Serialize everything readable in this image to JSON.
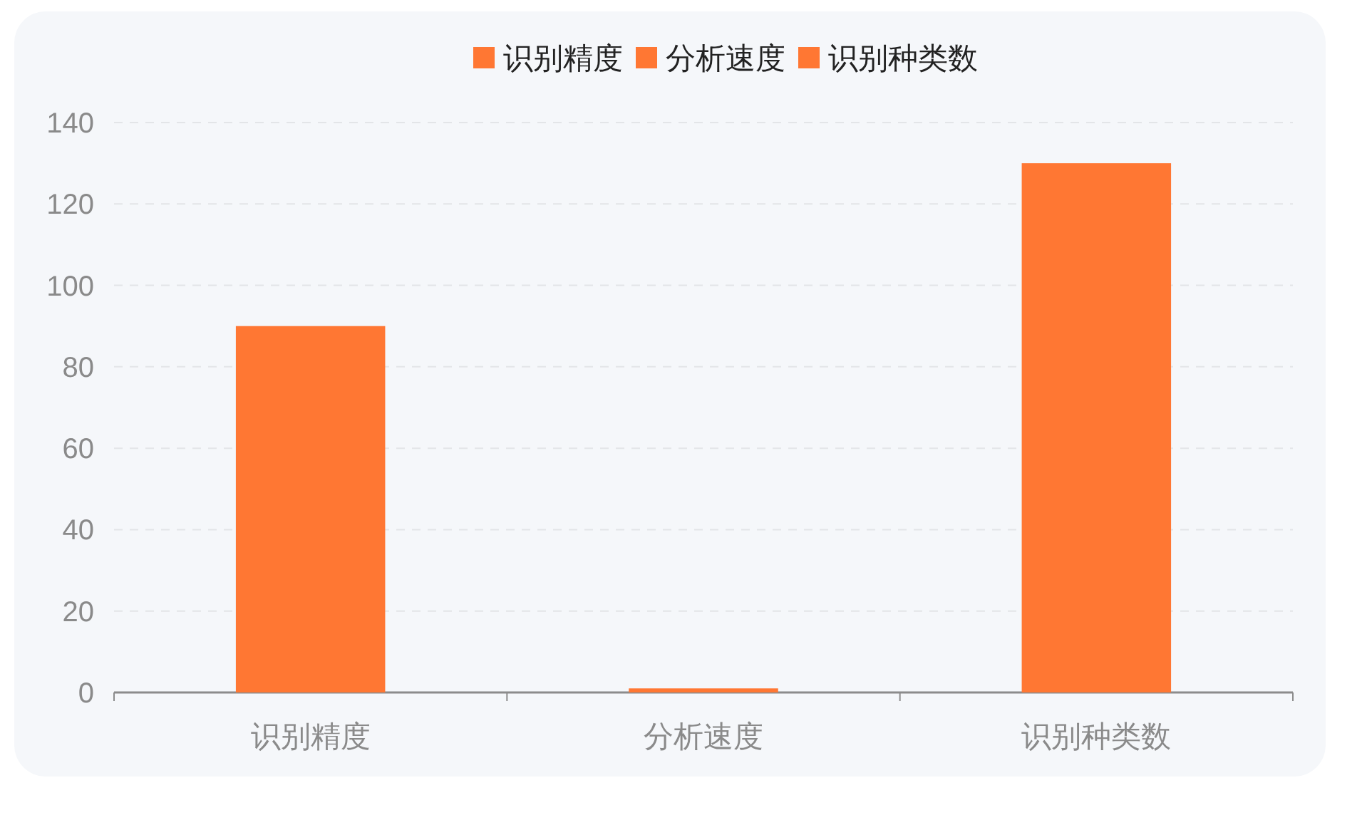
{
  "chart_data": {
    "type": "bar",
    "categories": [
      "识别精度",
      "分析速度",
      "识别种类数"
    ],
    "series": [
      {
        "name": "识别精度",
        "color": "#ff7733",
        "values": [
          90,
          null,
          null
        ]
      },
      {
        "name": "分析速度",
        "color": "#ff7733",
        "values": [
          null,
          1,
          null
        ]
      },
      {
        "name": "识别种类数",
        "color": "#ff7733",
        "values": [
          null,
          null,
          130
        ]
      }
    ],
    "ylim": [
      0,
      140
    ],
    "yticks": [
      0,
      20,
      40,
      60,
      80,
      100,
      120,
      140
    ],
    "grid": "y",
    "legend": "top"
  }
}
